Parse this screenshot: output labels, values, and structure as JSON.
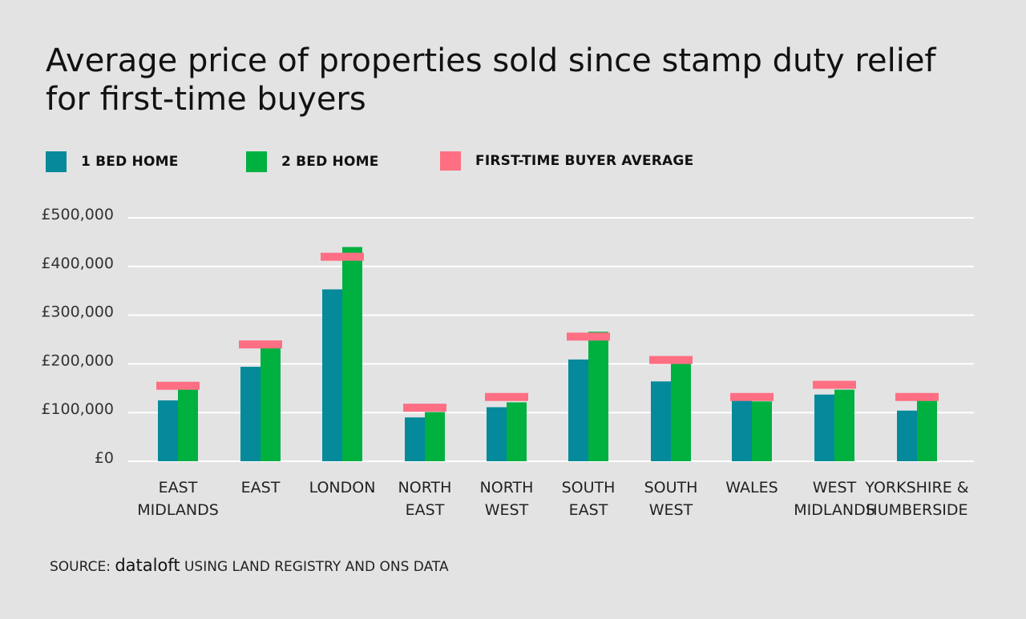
{
  "title": "Average price of properties sold since stamp duty relief for first-time buyers",
  "legend": {
    "one_bed": "1 BED HOME",
    "two_bed": "2 BED HOME",
    "ftb_avg": "FIRST-TIME BUYER AVERAGE"
  },
  "colors": {
    "one_bed": "#048a9b",
    "two_bed": "#00b140",
    "ftb_avg": "#ff6f84",
    "grid": "#ffffff",
    "background": "#e3e3e3"
  },
  "source": {
    "prefix": "SOURCE:",
    "brand": "dataloft",
    "suffix": "USING LAND REGISTRY AND ONS DATA"
  },
  "chart_data": {
    "type": "bar",
    "categories": [
      [
        "EAST",
        "MIDLANDS"
      ],
      [
        "EAST"
      ],
      [
        "LONDON"
      ],
      [
        "NORTH",
        "EAST"
      ],
      [
        "NORTH",
        "WEST"
      ],
      [
        "SOUTH",
        "EAST"
      ],
      [
        "SOUTH",
        "WEST"
      ],
      [
        "WALES"
      ],
      [
        "WEST",
        "MIDLANDS"
      ],
      [
        "YORKSHIRE &",
        "HUMBERSIDE"
      ]
    ],
    "series": [
      {
        "name": "1 BED HOME",
        "values": [
          125000,
          194000,
          353000,
          90000,
          111000,
          209000,
          164000,
          125000,
          137000,
          104000
        ]
      },
      {
        "name": "2 BED HOME",
        "values": [
          148000,
          235000,
          440000,
          101000,
          121000,
          266000,
          202000,
          123000,
          147000,
          126000
        ]
      },
      {
        "name": "FIRST-TIME BUYER AVERAGE",
        "values": [
          155000,
          240000,
          420000,
          110000,
          132000,
          256000,
          208000,
          132000,
          157000,
          132000
        ]
      }
    ],
    "ylim": [
      0,
      500000
    ],
    "yticks": [
      0,
      100000,
      200000,
      300000,
      400000,
      500000
    ],
    "ytick_labels": [
      "£0",
      "£100,000",
      "£200,000",
      "£300,000",
      "£400,000",
      "£500,000"
    ],
    "grid": true,
    "legend_position": "top-left"
  }
}
